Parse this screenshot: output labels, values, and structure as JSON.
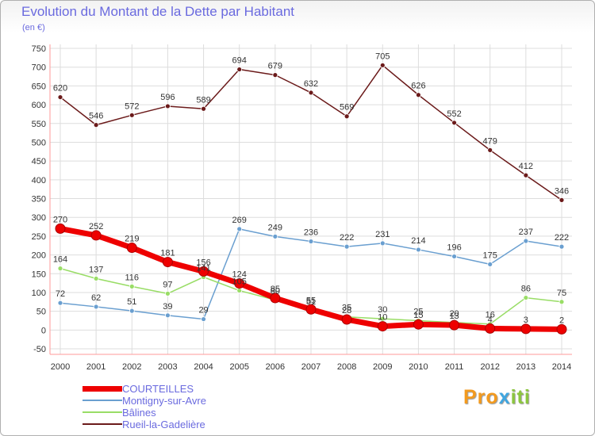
{
  "header": {
    "title": "Evolution du Montant de la Dette par Habitant",
    "subtitle": "(en €)"
  },
  "brand": {
    "part1": "Pro",
    "part2": "x",
    "part3": "iti"
  },
  "chart_data": {
    "type": "line",
    "title": "Evolution du Montant de la Dette par Habitant",
    "subtitle": "(en €)",
    "x": [
      "2000",
      "2001",
      "2002",
      "2003",
      "2004",
      "2005",
      "2006",
      "2007",
      "2008",
      "2009",
      "2010",
      "2011",
      "2012",
      "2013",
      "2014"
    ],
    "ylim": [
      -50,
      750
    ],
    "yticks": [
      "750",
      "700",
      "650",
      "600",
      "550",
      "500",
      "450",
      "400",
      "350",
      "300",
      "250",
      "200",
      "150",
      "100",
      "50",
      "0",
      "-50"
    ],
    "grid": true,
    "legend_position": "bottom-left",
    "series": [
      {
        "name": "COURTEILLES",
        "color": "#ee0000",
        "values": [
          270,
          252,
          219,
          181,
          156,
          124,
          85,
          55,
          28,
          10,
          15,
          13,
          4,
          3,
          2
        ]
      },
      {
        "name": "Montigny-sur-Avre",
        "color": "#6a9fd0",
        "values": [
          72,
          62,
          51,
          39,
          29,
          269,
          249,
          236,
          222,
          231,
          214,
          196,
          175,
          237,
          222
        ]
      },
      {
        "name": "Bâlines",
        "color": "#99dd66",
        "values": [
          164,
          137,
          116,
          97,
          141,
          105,
          80,
          51,
          35,
          30,
          25,
          20,
          16,
          86,
          75
        ]
      },
      {
        "name": "Rueil-la-Gadelière",
        "color": "#6b1a1a",
        "values": [
          620,
          546,
          572,
          596,
          589,
          694,
          679,
          632,
          569,
          705,
          626,
          552,
          479,
          412,
          346
        ]
      }
    ]
  }
}
